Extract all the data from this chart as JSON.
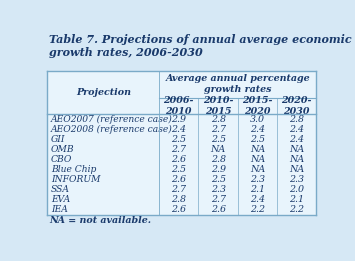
{
  "title": "Table 7. Projections of annual average economic\ngrowth rates, 2006-2030",
  "col_header_main": "Average annual percentage\ngrowth rates",
  "col_headers": [
    "2006-\n2010",
    "2010-\n2015",
    "2015-\n2020",
    "2020-\n2030"
  ],
  "row_label_header": "Projection",
  "rows": [
    [
      "AEO2007 (reference case)",
      "2.9",
      "2.8",
      "3.0",
      "2.8"
    ],
    [
      "AEO2008 (reference case)",
      "2.4",
      "2.7",
      "2.4",
      "2.4"
    ],
    [
      "GII",
      "2.5",
      "2.5",
      "2.5",
      "2.4"
    ],
    [
      "OMB",
      "2.7",
      "NA",
      "NA",
      "NA"
    ],
    [
      "CBO",
      "2.6",
      "2.8",
      "NA",
      "NA"
    ],
    [
      "Blue Chip",
      "2.5",
      "2.9",
      "NA",
      "NA"
    ],
    [
      "INFORUM",
      "2.6",
      "2.5",
      "2.3",
      "2.3"
    ],
    [
      "SSA",
      "2.7",
      "2.3",
      "2.1",
      "2.0"
    ],
    [
      "EVA",
      "2.8",
      "2.7",
      "2.4",
      "2.1"
    ],
    [
      "IEA",
      "2.6",
      "2.6",
      "2.2",
      "2.2"
    ]
  ],
  "footnote": "NA = not available.",
  "bg_color": "#d6e8f5",
  "table_inner_bg": "#e8f4fc",
  "text_color": "#1a3a6b",
  "border_color": "#7aaac8",
  "title_fs": 8.0,
  "header_fs": 6.8,
  "data_fs": 6.8
}
